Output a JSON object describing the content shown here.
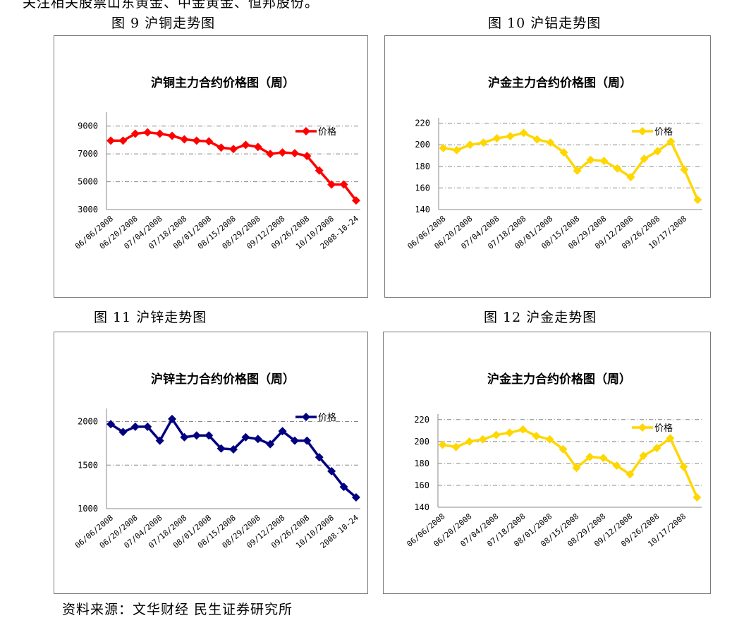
{
  "doc": {
    "top_text": "关注相关股票山东黄金、中金黄金、恒邦股份。",
    "source": "资料来源：文华财经 民生证券研究所"
  },
  "figures": [
    {
      "caption": "图 9 沪铜走势图"
    },
    {
      "caption": "图 10 沪铝走势图"
    },
    {
      "caption": "图 11 沪锌走势图"
    },
    {
      "caption": "图 12 沪金走势图"
    }
  ],
  "colors": {
    "copper": "#ff0000",
    "gold": "#ffd700",
    "zinc": "#000080",
    "grid": "#888888",
    "axis": "#888888"
  },
  "chart_data": [
    {
      "type": "line",
      "title": "沪铜主力合约价格图（周）",
      "legend": "价格",
      "legend_position": "top-right",
      "yticks": [
        3000,
        5000,
        7000,
        9000
      ],
      "ylim": [
        3000,
        10000
      ],
      "xticks": [
        "06/06/2008",
        "06/20/2008",
        "07/04/2008",
        "07/18/2008",
        "08/01/2008",
        "08/15/2008",
        "08/29/2008",
        "09/12/2008",
        "09/26/2008",
        "10/10/2008",
        "2008-10-24"
      ],
      "values": [
        7950,
        7950,
        8450,
        8550,
        8450,
        8300,
        8050,
        7950,
        7900,
        7450,
        7350,
        7650,
        7500,
        7000,
        7100,
        7050,
        6850,
        5800,
        4800,
        4800,
        3650
      ],
      "color": "#ff0000"
    },
    {
      "type": "line",
      "title": "沪金主力合约价格图（周）",
      "legend": "价格",
      "legend_position": "top-right",
      "yticks": [
        140,
        160,
        180,
        200,
        220
      ],
      "ylim": [
        140,
        225
      ],
      "xticks": [
        "06/06/2008",
        "06/20/2008",
        "07/04/2008",
        "07/18/2008",
        "08/01/2008",
        "08/15/2008",
        "08/29/2008",
        "09/12/2008",
        "09/26/2008",
        "10/17/2008"
      ],
      "values": [
        197,
        195,
        200,
        202,
        206,
        208,
        211,
        205,
        202,
        193,
        176,
        186,
        185,
        178,
        170,
        187,
        194,
        203,
        177,
        149
      ],
      "color": "#ffd700"
    },
    {
      "type": "line",
      "title": "沪锌主力合约价格图（周）",
      "legend": "价格",
      "legend_position": "top-right",
      "yticks": [
        1000,
        1500,
        2000
      ],
      "ylim": [
        1000,
        2150
      ],
      "xticks": [
        "06/06/2008",
        "06/20/2008",
        "07/04/2008",
        "07/18/2008",
        "08/01/2008",
        "08/15/2008",
        "08/29/2008",
        "09/12/2008",
        "09/26/2008",
        "10/10/2008",
        "2008-10-24"
      ],
      "values": [
        1970,
        1880,
        1940,
        1940,
        1780,
        2030,
        1820,
        1840,
        1840,
        1690,
        1680,
        1820,
        1800,
        1740,
        1890,
        1780,
        1780,
        1590,
        1430,
        1250,
        1130
      ],
      "color": "#000080"
    },
    {
      "type": "line",
      "title": "沪金主力合约价格图（周）",
      "legend": "价格",
      "legend_position": "top-right",
      "yticks": [
        140,
        160,
        180,
        200,
        220
      ],
      "ylim": [
        140,
        225
      ],
      "xticks": [
        "06/06/2008",
        "06/20/2008",
        "07/04/2008",
        "07/18/2008",
        "08/01/2008",
        "08/15/2008",
        "08/29/2008",
        "09/12/2008",
        "09/26/2008",
        "10/17/2008"
      ],
      "values": [
        197,
        195,
        200,
        202,
        206,
        208,
        211,
        205,
        202,
        193,
        176,
        186,
        185,
        178,
        170,
        187,
        194,
        203,
        177,
        149
      ],
      "color": "#ffd700"
    }
  ]
}
